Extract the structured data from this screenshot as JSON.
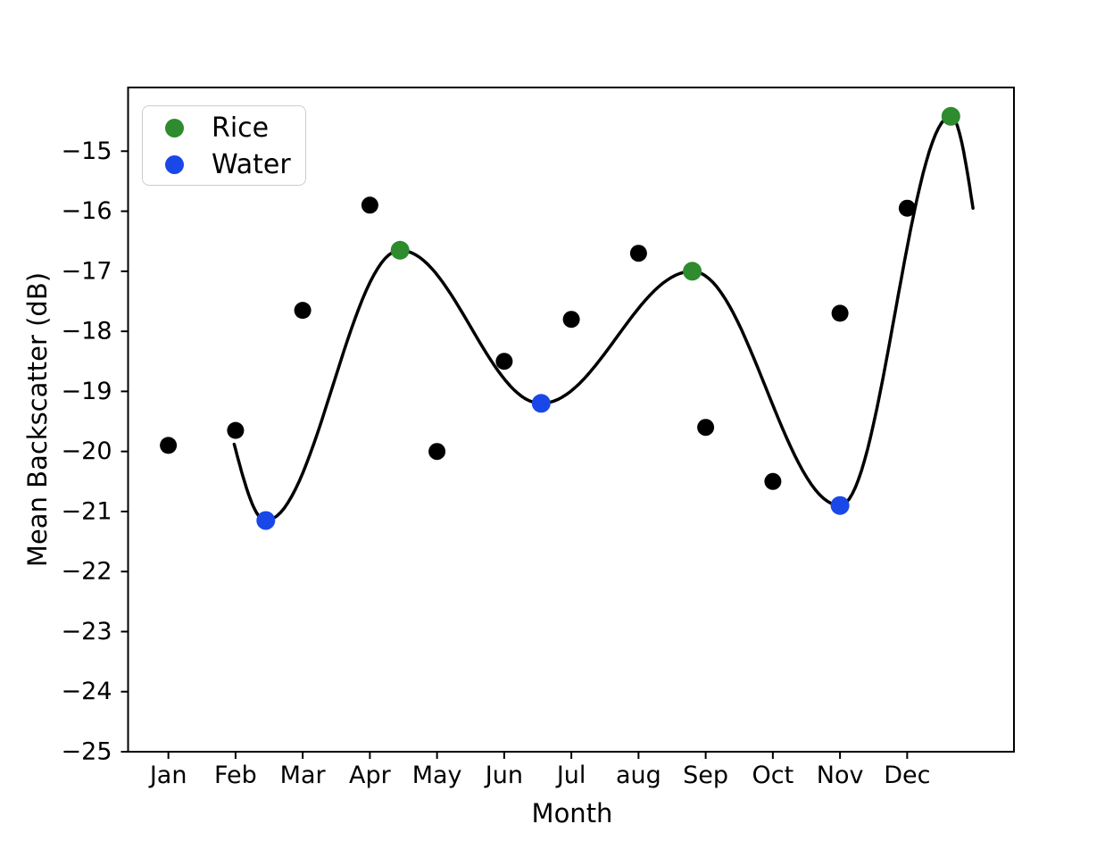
{
  "chart_data": {
    "type": "scatter",
    "title": "",
    "xlabel": "Month",
    "ylabel": "Mean Backscatter (dB)",
    "xlim": [
      0.4,
      13.59
    ],
    "ylim": [
      -25,
      -13.94
    ],
    "grid": false,
    "x_ticks": {
      "positions": [
        1,
        2,
        3,
        4,
        5,
        6,
        7,
        8,
        9,
        10,
        11,
        12
      ],
      "labels": [
        "Jan",
        "Feb",
        "Mar",
        "Apr",
        "May",
        "Jun",
        "Jul",
        "aug",
        "Sep",
        "Oct",
        "Nov",
        "Dec"
      ]
    },
    "y_ticks": {
      "positions": [
        -25,
        -24,
        -23,
        -22,
        -21,
        -20,
        -19,
        -18,
        -17,
        -16,
        -15
      ],
      "labels": [
        "−25",
        "−24",
        "−23",
        "−22",
        "−21",
        "−20",
        "−19",
        "−18",
        "−17",
        "−16",
        "−15"
      ]
    },
    "legend": {
      "position": "upper-left",
      "entries": [
        {
          "label": "Rice",
          "color": "#2e8b2e"
        },
        {
          "label": "Water",
          "color": "#1a47e8"
        }
      ]
    },
    "colors": {
      "monthly_points": "#000000",
      "fit_curve": "#000000",
      "rice": "#2e8b2e",
      "water": "#1a47e8",
      "spine": "#000000"
    },
    "series": [
      {
        "name": "monthly_backscatter",
        "type": "scatter",
        "color": "#000000",
        "x": [
          1,
          2,
          3,
          4,
          5,
          6,
          7,
          8,
          9,
          10,
          11,
          12
        ],
        "y": [
          -19.9,
          -19.65,
          -17.65,
          -15.9,
          -20.0,
          -18.5,
          -17.8,
          -16.7,
          -19.6,
          -20.5,
          -17.7,
          -15.95
        ]
      },
      {
        "name": "rice",
        "type": "scatter",
        "color": "#2e8b2e",
        "x": [
          4.45,
          8.8,
          12.65
        ],
        "y": [
          -16.65,
          -17.0,
          -14.42
        ]
      },
      {
        "name": "water",
        "type": "scatter",
        "color": "#1a47e8",
        "x": [
          2.45,
          6.55,
          11.0
        ],
        "y": [
          -21.15,
          -19.2,
          -20.9
        ]
      },
      {
        "name": "fit_curve",
        "type": "line",
        "color": "#000000",
        "anchors": [
          {
            "x": 1.98,
            "y": -19.88,
            "role": "start"
          },
          {
            "x": 2.45,
            "y": -21.15,
            "role": "min"
          },
          {
            "x": 4.45,
            "y": -16.65,
            "role": "max"
          },
          {
            "x": 6.55,
            "y": -19.2,
            "role": "min"
          },
          {
            "x": 8.8,
            "y": -17.0,
            "role": "max"
          },
          {
            "x": 11.0,
            "y": -20.9,
            "role": "min"
          },
          {
            "x": 12.65,
            "y": -14.42,
            "role": "max"
          },
          {
            "x": 12.98,
            "y": -15.95,
            "role": "end"
          }
        ]
      }
    ]
  }
}
